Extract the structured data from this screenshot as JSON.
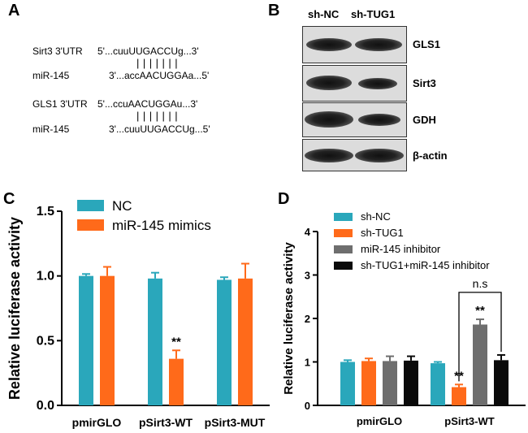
{
  "panels": {
    "a": "A",
    "b": "B",
    "c": "C",
    "d": "D"
  },
  "panel_a": {
    "pairs": [
      {
        "name": "Sirt3 3'UTR",
        "seq": "5'...cuuUUGACCUg...3'",
        "bars": "|||||||",
        "mirna": "miR-145",
        "mirseq": "3'...accAACUGGAa...5'"
      },
      {
        "name": "GLS1 3'UTR",
        "seq": "5'...ccuAACUGGAu...3'",
        "bars": "|||||||",
        "mirna": "miR-145",
        "mirseq": "3'...cuuUUGACCUg...5'"
      }
    ]
  },
  "panel_b": {
    "lanes": [
      "sh-NC",
      "sh-TUG1"
    ],
    "blots": [
      "GLS1",
      "Sirt3",
      "GDH",
      "β-actin"
    ]
  },
  "chart_data": [
    {
      "type": "bar",
      "panel": "C",
      "ylabel": "Relative luciferase activity",
      "ylim": [
        0,
        1.5
      ],
      "yticks": [
        "0.0",
        "0.5",
        "1.0",
        "1.5"
      ],
      "categories": [
        "pmirGLO",
        "pSirt3-WT",
        "pSirt3-MUT"
      ],
      "series": [
        {
          "name": "NC",
          "color": "#2aa7bb",
          "values": [
            1.0,
            0.98,
            0.97
          ],
          "errors": [
            0.015,
            0.045,
            0.02
          ]
        },
        {
          "name": "miR-145 mimics",
          "color": "#ff6a1a",
          "values": [
            1.0,
            0.36,
            0.98
          ],
          "errors": [
            0.07,
            0.065,
            0.115
          ]
        }
      ],
      "annotations": [
        {
          "text": "**",
          "series": 1,
          "category": 1
        }
      ],
      "legend": "top-left"
    },
    {
      "type": "bar",
      "panel": "D",
      "ylabel": "Relative luciferase activity",
      "ylim": [
        0,
        4
      ],
      "yticks": [
        "0",
        "1",
        "2",
        "3",
        "4"
      ],
      "categories": [
        "pmirGLO",
        "pSirt3-WT"
      ],
      "series": [
        {
          "name": "sh-NC",
          "color": "#2aa7bb",
          "values": [
            1.0,
            0.97
          ],
          "errors": [
            0.04,
            0.03
          ]
        },
        {
          "name": "sh-TUG1",
          "color": "#ff6a1a",
          "values": [
            1.02,
            0.42
          ],
          "errors": [
            0.06,
            0.06
          ]
        },
        {
          "name": "miR-145 inhibitor",
          "color": "#6e6e6e",
          "values": [
            1.02,
            1.86
          ],
          "errors": [
            0.11,
            0.12
          ]
        },
        {
          "name": "sh-TUG1+miR-145 inhibitor",
          "color": "#0a0a0a",
          "values": [
            1.03,
            1.04
          ],
          "errors": [
            0.1,
            0.12
          ]
        }
      ],
      "annotations": [
        {
          "text": "**",
          "series": 1,
          "category": 1
        },
        {
          "text": "**",
          "series": 2,
          "category": 1
        }
      ],
      "bracket": {
        "text": "n.s",
        "from_series": 1,
        "to_series": 3,
        "category": 1,
        "y": 2.6
      },
      "legend": "top-left"
    }
  ]
}
